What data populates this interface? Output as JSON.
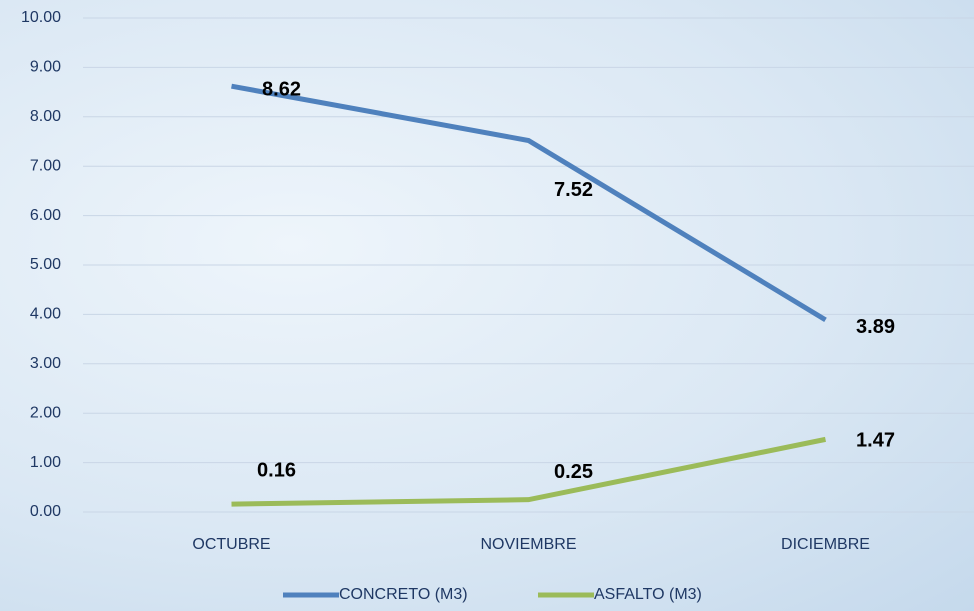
{
  "chart_data": {
    "type": "line",
    "categories": [
      "OCTUBRE",
      "NOVIEMBRE",
      "DICIEMBRE"
    ],
    "series": [
      {
        "name": "CONCRETO (M3)",
        "color": "#4f81bd",
        "values": [
          8.62,
          7.52,
          3.89
        ]
      },
      {
        "name": "ASFALTO (M3)",
        "color": "#9bbb59",
        "values": [
          0.16,
          0.25,
          1.47
        ]
      }
    ],
    "ylim": [
      0,
      10
    ],
    "yticks": [
      {
        "value": 0,
        "label": "0.00"
      },
      {
        "value": 1,
        "label": "1.00"
      },
      {
        "value": 2,
        "label": "2.00"
      },
      {
        "value": 3,
        "label": "3.00"
      },
      {
        "value": 4,
        "label": "4.00"
      },
      {
        "value": 5,
        "label": "5.00"
      },
      {
        "value": 6,
        "label": "6.00"
      },
      {
        "value": 7,
        "label": "7.00"
      },
      {
        "value": 8,
        "label": "8.00"
      },
      {
        "value": 9,
        "label": "9.00"
      },
      {
        "value": 10,
        "label": "10.00"
      }
    ],
    "grid": true,
    "legend": "bottom"
  }
}
